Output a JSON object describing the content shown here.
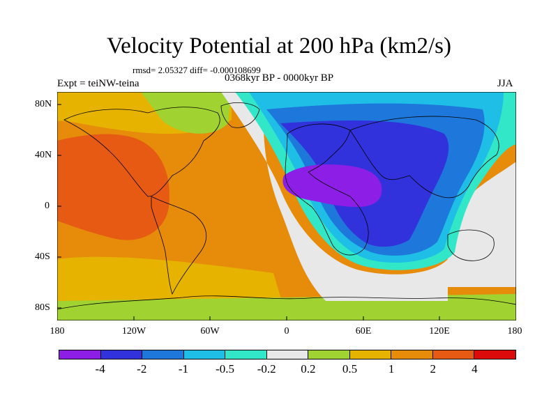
{
  "title": "Velocity Potential at 200 hPa (km2/s)",
  "stats": "rmsd= 2.05327 diff= -0.000108699",
  "experiment": "Expt = teiNW-teina",
  "period": "0368kyr BP - 0000kyr BP",
  "season": "JJA",
  "lat_labels": [
    "80N",
    "40N",
    "0",
    "40S",
    "80S"
  ],
  "lon_labels": [
    "180",
    "120W",
    "60W",
    "0",
    "60E",
    "120E",
    "180"
  ],
  "colorbar": {
    "colors": [
      "#8c1ee6",
      "#3232dc",
      "#1e78dc",
      "#1ebee6",
      "#32e6c8",
      "#e8e8e8",
      "#a0d232",
      "#e6b400",
      "#e68c0a",
      "#e65a14",
      "#dc0a0a"
    ],
    "labels": [
      "-4",
      "-2",
      "-1",
      "-0.5",
      "-0.2",
      "0.2",
      "0.5",
      "1",
      "2",
      "4"
    ]
  },
  "field_colors": {
    "orange": "#e68c0a",
    "red_orange": "#e65a14",
    "gold": "#e6b400",
    "green": "#a0d232",
    "white": "#e8e8e8",
    "teal": "#32e6c8",
    "cyan": "#1ebee6",
    "blue": "#1e78dc",
    "dark_blue": "#3232dc",
    "purple": "#8c1ee6"
  }
}
